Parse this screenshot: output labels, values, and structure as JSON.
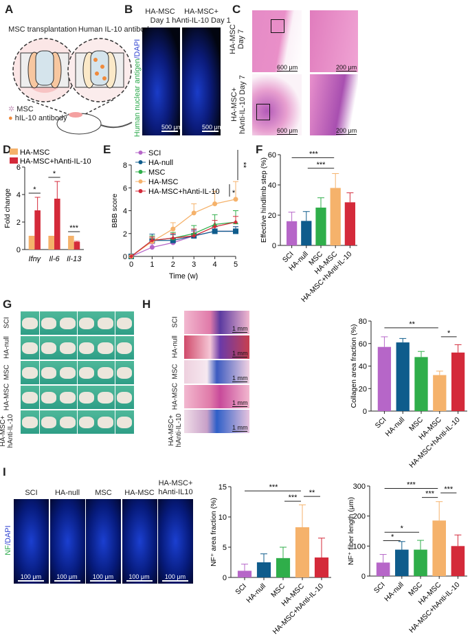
{
  "panels": {
    "A": "A",
    "B": "B",
    "C": "C",
    "D": "D",
    "E": "E",
    "F": "F",
    "G": "G",
    "H": "H",
    "I": "I"
  },
  "panelA": {
    "title_left": "MSC transplantation",
    "title_right": "Human IL-10 antibody",
    "legend": [
      "MSC",
      "hIL-10 antibody"
    ],
    "colors": {
      "msc": "#c9a0c0",
      "antibody": "#f08a3c"
    }
  },
  "panelB": {
    "col1": "HA-MSC",
    "col1b": "Day 1",
    "col2": "HA-MSC+",
    "col2b": "hAnti-IL-10 Day 1",
    "ylabel_green": "Human nuclear antigen",
    "ylabel_blue": "/DAPI",
    "scale": "500 μm"
  },
  "panelC": {
    "row1a": "HA-MSC",
    "row1b": "Day 7",
    "row2a": "HA-MSC+",
    "row2b": "hAnti-IL-10 Day 7",
    "scale_low": "600 μm",
    "scale_high": "200 μm"
  },
  "panelG": {
    "rows": [
      "SCI",
      "HA-null",
      "MSC",
      "HA-MSC",
      "HA-MSC+ hAnti-IL-10"
    ]
  },
  "panelH": {
    "rows": [
      "SCI",
      "HA-null",
      "MSC",
      "HA-MSC",
      "HA-MSC+ hAnti-IL-10"
    ],
    "scale": "1 mm"
  },
  "panelI": {
    "cols": [
      "SCI",
      "HA-null",
      "MSC",
      "HA-MSC",
      "HA-MSC+ hAnti-IL10"
    ],
    "ylabel_green": "NF",
    "ylabel_blue": "/DAPI",
    "scale": "100 μm"
  },
  "colors": {
    "SCI": "#b666c8",
    "HA-null": "#0f5c8c",
    "MSC": "#2fae4a",
    "HA-MSC": "#f5b26b",
    "HA-MSC+hAnti-IL-10": "#d42a3a"
  },
  "chart_data": [
    {
      "panel": "D",
      "type": "bar",
      "categories": [
        "Ifnγ",
        "Il-6",
        "Il-13"
      ],
      "ylabel": "Fold change",
      "ylim": [
        0,
        6
      ],
      "yticks": [
        0,
        2,
        4,
        6
      ],
      "series": [
        {
          "name": "HA-MSC",
          "values": [
            1,
            1,
            1
          ],
          "errors": [
            0,
            0,
            0
          ],
          "color": "#f5b26b"
        },
        {
          "name": "HA-MSC+hAnti-IL-10",
          "values": [
            2.85,
            3.7,
            0.55
          ],
          "errors": [
            0.95,
            1.25,
            0.05
          ],
          "color": "#d42a3a"
        }
      ],
      "significance": [
        {
          "group": 0,
          "label": "*"
        },
        {
          "group": 1,
          "label": "*"
        },
        {
          "group": 2,
          "label": "***"
        }
      ],
      "legend": "top-left"
    },
    {
      "panel": "E",
      "type": "line",
      "x": [
        0,
        1,
        2,
        3,
        4,
        5
      ],
      "xlabel": "Time (w)",
      "ylabel": "BBB score",
      "ylim": [
        0,
        8
      ],
      "yticks": [
        0,
        2,
        4,
        6,
        8
      ],
      "series": [
        {
          "name": "SCI",
          "values": [
            0,
            0.8,
            1.2,
            1.8,
            2.2,
            2.2
          ],
          "errors": [
            0,
            0.3,
            0.3,
            0.4,
            0.4,
            0.4
          ],
          "color": "#b666c8",
          "marker": "circle"
        },
        {
          "name": "HA-null",
          "values": [
            0,
            1.4,
            1.4,
            1.8,
            2.2,
            2.2
          ],
          "errors": [
            0,
            0.55,
            0.5,
            0.5,
            0.4,
            0.4
          ],
          "color": "#0f5c8c",
          "marker": "square"
        },
        {
          "name": "MSC",
          "values": [
            0,
            1.4,
            1.6,
            2.0,
            2.8,
            3.0
          ],
          "errors": [
            0,
            0.4,
            0.5,
            0.7,
            0.85,
            1.0
          ],
          "color": "#2fae4a",
          "marker": "triangle"
        },
        {
          "name": "HA-MSC",
          "values": [
            0,
            1.3,
            2.4,
            3.8,
            4.6,
            5.0
          ],
          "errors": [
            0,
            0.3,
            0.55,
            0.8,
            1.1,
            1.55
          ],
          "color": "#f5b26b",
          "marker": "circle"
        },
        {
          "name": "HA-MSC+hAnti-IL-10",
          "values": [
            0,
            1.4,
            1.6,
            1.8,
            2.6,
            3.0
          ],
          "errors": [
            0,
            0.3,
            0.4,
            0.6,
            0.55,
            0.5
          ],
          "color": "#d42a3a",
          "marker": "diamond"
        }
      ],
      "significance": [
        {
          "label": "**"
        },
        {
          "label": "*"
        }
      ],
      "legend": "top-left"
    },
    {
      "panel": "F",
      "type": "bar",
      "categories": [
        "SCI",
        "HA-null",
        "MSC",
        "HA-MSC",
        "HA-MSC+hAnti-IL-10"
      ],
      "ylabel": "Effective hindlimb step (%)",
      "ylim": [
        0,
        60
      ],
      "yticks": [
        0,
        20,
        40,
        60
      ],
      "values": [
        16,
        16.2,
        25,
        38,
        28.5
      ],
      "errors": [
        6,
        6.2,
        6.5,
        9.5,
        6.3
      ],
      "significance": [
        {
          "from": 0,
          "to": 3,
          "label": "***"
        },
        {
          "from": 1,
          "to": 3,
          "label": "***"
        }
      ]
    },
    {
      "panel": "H",
      "type": "bar",
      "categories": [
        "SCI",
        "HA-null",
        "MSC",
        "HA-MSC",
        "HA-MSC+hAnti-IL-10"
      ],
      "ylabel": "Collagen area fraction (%)",
      "ylim": [
        0,
        80
      ],
      "yticks": [
        0,
        20,
        40,
        60,
        80
      ],
      "values": [
        57,
        61,
        48,
        32,
        52
      ],
      "errors": [
        9,
        3.5,
        5,
        3.5,
        7
      ],
      "significance": [
        {
          "from": 0,
          "to": 3,
          "label": "**"
        },
        {
          "from": 3,
          "to": 4,
          "label": "*"
        }
      ]
    },
    {
      "panel": "I",
      "type": "bar",
      "categories": [
        "SCI",
        "HA-null",
        "MSC",
        "HA-MSC",
        "HA-MSC+hAnti-IL-10"
      ],
      "ylabel": "NF⁺ area fraction (%)",
      "ylim": [
        0,
        15
      ],
      "yticks": [
        0,
        5,
        10,
        15
      ],
      "values": [
        1.1,
        2.5,
        3.2,
        8.3,
        3.3
      ],
      "errors": [
        1.1,
        1.4,
        1.8,
        3.7,
        3.2
      ],
      "significance": [
        {
          "from": 0,
          "to": 3,
          "label": "***"
        },
        {
          "from": 2,
          "to": 3,
          "label": "***"
        },
        {
          "from": 3,
          "to": 4,
          "label": "**"
        }
      ]
    },
    {
      "panel": "I",
      "type": "bar",
      "categories": [
        "SCI",
        "HA-null",
        "MSC",
        "HA-MSC",
        "HA-MSC+hAnti-IL-10"
      ],
      "ylabel": "NF⁺ fiber length (μm)",
      "ylim": [
        0,
        300
      ],
      "yticks": [
        0,
        100,
        200,
        300
      ],
      "values": [
        45,
        88,
        88,
        185,
        100
      ],
      "errors": [
        27,
        27,
        31,
        63,
        37
      ],
      "significance": [
        {
          "from": 0,
          "to": 1,
          "label": "*"
        },
        {
          "from": 0,
          "to": 2,
          "label": "*"
        },
        {
          "from": 0,
          "to": 3,
          "label": "***"
        },
        {
          "from": 2,
          "to": 3,
          "label": "***"
        },
        {
          "from": 3,
          "to": 4,
          "label": "***"
        }
      ]
    }
  ]
}
